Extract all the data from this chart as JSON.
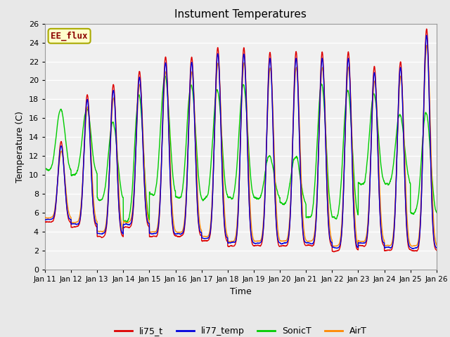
{
  "title": "Instument Temperatures",
  "xlabel": "Time",
  "ylabel": "Temperature (C)",
  "ylim": [
    0,
    26
  ],
  "yticks": [
    0,
    2,
    4,
    6,
    8,
    10,
    12,
    14,
    16,
    18,
    20,
    22,
    24,
    26
  ],
  "bg_color": "#e8e8e8",
  "plot_bg": "#f0f0f0",
  "grid_color": "white",
  "annotation_text": "EE_flux",
  "annotation_color": "#8b0000",
  "annotation_bg": "#ffffcc",
  "annotation_border": "#aaaa00",
  "lines": {
    "li75_t": {
      "color": "#dd0000",
      "lw": 1.0,
      "zorder": 4
    },
    "li77_temp": {
      "color": "#0000dd",
      "lw": 1.0,
      "zorder": 5
    },
    "SonicT": {
      "color": "#00cc00",
      "lw": 1.0,
      "zorder": 2
    },
    "AirT": {
      "color": "#ff8800",
      "lw": 1.0,
      "zorder": 3
    }
  },
  "xtick_labels": [
    "Jan 11",
    "Jan 12",
    "Jan 13",
    "Jan 14",
    "Jan 15",
    "Jan 16",
    "Jan 17",
    "Jan 18",
    "Jan 19",
    "Jan 20",
    "Jan 21",
    "Jan 22",
    "Jan 23",
    "Jan 24",
    "Jan 25",
    "Jan 26"
  ],
  "legend_entries": [
    "li75_t",
    "li77_temp",
    "SonicT",
    "AirT"
  ],
  "legend_colors": [
    "#dd0000",
    "#0000dd",
    "#00cc00",
    "#ff8800"
  ]
}
